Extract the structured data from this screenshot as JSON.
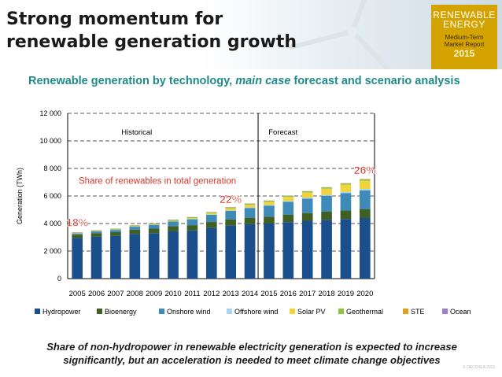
{
  "slide": {
    "title": "Strong momentum for renewable generation growth",
    "subtitle_start": "Renewable generation by technology, ",
    "subtitle_emph": "main case",
    "subtitle_end": " forecast and scenario analysis",
    "footer_line1": "Share of non-hydropower in renewable electricity generation is expected to increase",
    "footer_line2": "significantly, but an acceleration is needed to meet climate change objectives",
    "copyright": "© OECD/IEA 2015",
    "badge": {
      "line1": "RENEWABLE",
      "line2": "ENERGY",
      "line3": "Medium-Term",
      "line4": "Market Report",
      "line5": "2015"
    }
  },
  "colors": {
    "title_teal": "#1f8a8a",
    "badge_gold": "#d4a300",
    "share_red": "#d9362b"
  },
  "chart_data": {
    "type": "bar",
    "stacked": true,
    "ylabel": "Generation (TWh)",
    "ylim": [
      0,
      12000
    ],
    "yticks": [
      0,
      2000,
      4000,
      6000,
      8000,
      10000,
      12000
    ],
    "ytick_labels": [
      "0",
      "2 000",
      "4 000",
      "6 000",
      "8 000",
      "10 000",
      "12 000"
    ],
    "grid": "dashed horizontal",
    "categories": [
      "2005",
      "2006",
      "2007",
      "2008",
      "2009",
      "2010",
      "2011",
      "2012",
      "2013",
      "2014",
      "2015",
      "2016",
      "2017",
      "2018",
      "2019",
      "2020"
    ],
    "divider_after": "2014",
    "region_labels": {
      "historical": "Historical",
      "forecast": "Forecast"
    },
    "annotation": "Share of renewables in total generation",
    "share_labels": [
      {
        "category": "2005",
        "text": "18%",
        "y": 3800
      },
      {
        "category": "2013",
        "text": "22%",
        "y": 5500
      },
      {
        "category": "2020",
        "text": "26%",
        "y": 7600
      }
    ],
    "legend_position": "bottom",
    "series": [
      {
        "name": "Hydropower",
        "color": "#1b4f8c",
        "values": [
          2950,
          3050,
          3100,
          3250,
          3300,
          3450,
          3500,
          3700,
          3850,
          3950,
          4000,
          4100,
          4200,
          4270,
          4330,
          4400
        ]
      },
      {
        "name": "Bioenergy",
        "color": "#3f5f23",
        "values": [
          230,
          250,
          270,
          300,
          330,
          360,
          380,
          410,
          440,
          470,
          500,
          530,
          560,
          590,
          620,
          650
        ]
      },
      {
        "name": "Onshore wind",
        "color": "#3e8bb9",
        "values": [
          100,
          130,
          170,
          220,
          270,
          340,
          430,
          520,
          640,
          710,
          800,
          950,
          1050,
          1150,
          1250,
          1350
        ]
      },
      {
        "name": "Offshore wind",
        "color": "#a9d3ee",
        "values": [
          5,
          5,
          5,
          10,
          10,
          15,
          20,
          25,
          30,
          40,
          45,
          55,
          70,
          80,
          95,
          110
        ]
      },
      {
        "name": "Solar PV",
        "color": "#f0d43a",
        "values": [
          5,
          5,
          10,
          15,
          20,
          35,
          60,
          100,
          140,
          190,
          230,
          300,
          370,
          440,
          520,
          600
        ]
      },
      {
        "name": "Geothermal",
        "color": "#8cc63f",
        "values": [
          60,
          60,
          60,
          65,
          65,
          68,
          70,
          70,
          72,
          75,
          78,
          80,
          83,
          86,
          89,
          92
        ]
      },
      {
        "name": "STE",
        "color": "#e0a020",
        "values": [
          1,
          1,
          1,
          1,
          1,
          2,
          3,
          5,
          7,
          8,
          10,
          12,
          15,
          18,
          22,
          26
        ]
      },
      {
        "name": "Ocean",
        "color": "#9b7fc7",
        "values": [
          1,
          1,
          1,
          1,
          1,
          1,
          1,
          1,
          1,
          1,
          1,
          1,
          1,
          1,
          1,
          1
        ]
      }
    ]
  }
}
